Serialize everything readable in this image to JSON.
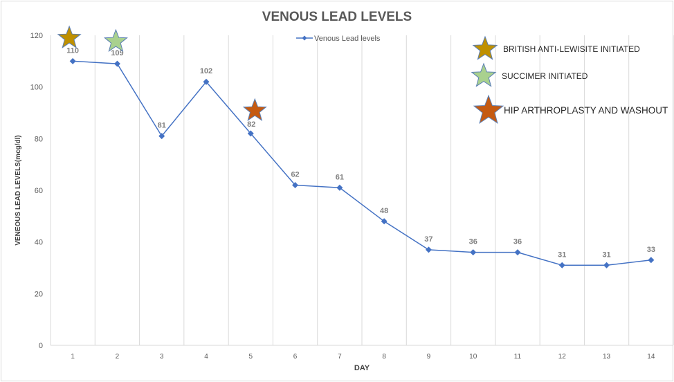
{
  "chart_data": {
    "type": "line",
    "title": "VENOUS LEAD LEVELS",
    "xlabel": "DAY",
    "ylabel": "VENEOUS LEAD LEVELS(mcg/dl)",
    "categories": [
      "1",
      "2",
      "3",
      "4",
      "5",
      "6",
      "7",
      "8",
      "9",
      "10",
      "11",
      "12",
      "13",
      "14"
    ],
    "series": [
      {
        "name": "Venous Lead levels",
        "values": [
          110,
          109,
          81,
          102,
          82,
          62,
          61,
          48,
          37,
          36,
          36,
          31,
          31,
          33
        ],
        "color": "#4472c4"
      }
    ],
    "ylim": [
      0,
      120
    ],
    "yticks": [
      "0",
      "20",
      "40",
      "60",
      "80",
      "100",
      "120"
    ],
    "grid": "vertical",
    "legend": "top-center",
    "annotations": [
      {
        "label": "BRITISH ANTI-LEWISITE INITIATED",
        "day": 1,
        "color": "#bf9000"
      },
      {
        "label": "SUCCIMER INITIATED",
        "day": 2,
        "color": "#a9d18e"
      },
      {
        "label": "HIP ARTHROPLASTY AND WASHOUT",
        "day": 5,
        "color": "#c55a11"
      }
    ]
  }
}
